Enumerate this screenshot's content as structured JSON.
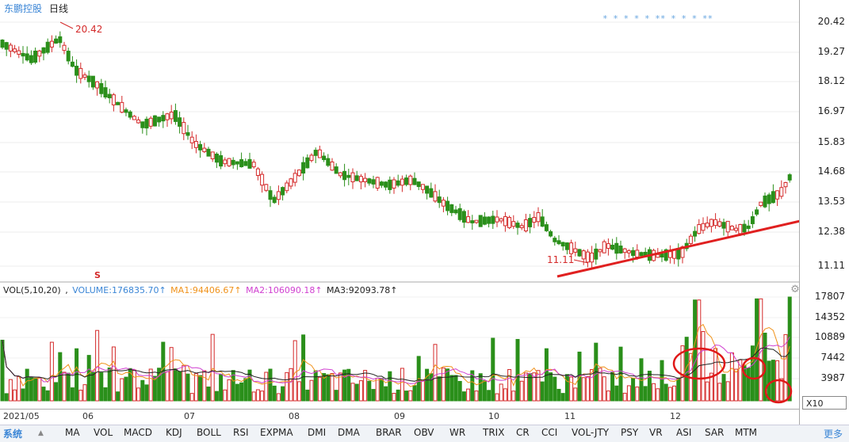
{
  "header": {
    "stock_name": "东鹏控股",
    "period": "日线"
  },
  "price_axis": [
    "20.42",
    "19.27",
    "18.12",
    "16.97",
    "15.83",
    "14.68",
    "13.53",
    "12.38",
    "11.11"
  ],
  "annotations": {
    "high_label": "20.42",
    "low_label": "11.11",
    "s_marker": "S",
    "star_markers": "* *  *  * * ** * * *  **"
  },
  "volume_legend": {
    "title": "VOL(5,10,20)",
    "volume": "VOLUME:176835.70↑",
    "ma1": "MA1:94406.67↑",
    "ma2": "MA2:106090.18↑",
    "ma3": "MA3:92093.78↑"
  },
  "volume_axis": [
    "17807",
    "14352",
    "10889",
    "7442",
    "3987"
  ],
  "x10_label": "X10",
  "date_axis": [
    "2021/05",
    "06",
    "07",
    "08",
    "09",
    "10",
    "11",
    "12"
  ],
  "tabs": [
    "系统",
    "MA",
    "VOL",
    "MACD",
    "KDJ",
    "BOLL",
    "RSI",
    "EXPMA",
    "DMI",
    "DMA",
    "BRAR",
    "OBV",
    "WR",
    "TRIX",
    "CR",
    "CCI",
    "VOL-JTY",
    "PSY",
    "VR",
    "ASI",
    "SAR",
    "MTM"
  ],
  "more_tab": "更多",
  "colors": {
    "up": "#d42a2a",
    "down": "#2a8f1a",
    "trend": "#e02020",
    "vol_line": "#3b86d6",
    "ma1": "#f0921a",
    "ma2": "#d040d0",
    "ma3": "#222222",
    "link": "#3b86d6"
  },
  "icons": {
    "gear": "gear-icon",
    "tab_arrow": "tab-arrow-icon"
  }
}
